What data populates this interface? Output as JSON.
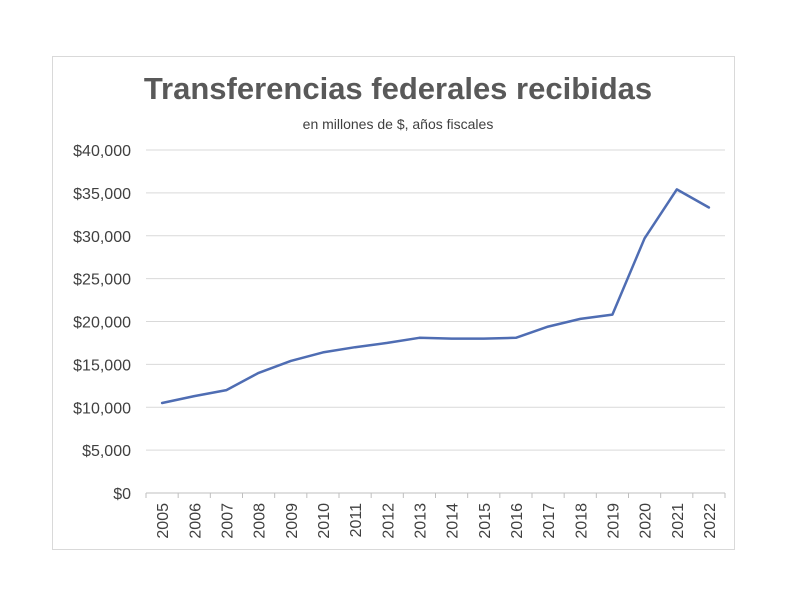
{
  "chart_data": {
    "type": "line",
    "title": "Transferencias federales recibidas",
    "subtitle": "en millones de $, años fiscales",
    "xlabel": "",
    "ylabel": "",
    "ylim": [
      0,
      40000
    ],
    "yticks": [
      0,
      5000,
      10000,
      15000,
      20000,
      25000,
      30000,
      35000,
      40000
    ],
    "ytick_labels": [
      "$0",
      "$5,000",
      "$10,000",
      "$15,000",
      "$20,000",
      "$25,000",
      "$30,000",
      "$35,000",
      "$40,000"
    ],
    "grid": true,
    "legend": "none",
    "categories": [
      "2005",
      "2006",
      "2007",
      "2008",
      "2009",
      "2010",
      "2011",
      "2012",
      "2013",
      "2014",
      "2015",
      "2016",
      "2017",
      "2018",
      "2019",
      "2020",
      "2021",
      "2022"
    ],
    "series": [
      {
        "values": [
          10500,
          11300,
          12000,
          14000,
          15400,
          16400,
          17000,
          17500,
          18100,
          18000,
          18000,
          18100,
          19400,
          20300,
          20800,
          29700,
          35400,
          33300
        ],
        "color": "#4f6db3"
      }
    ]
  }
}
